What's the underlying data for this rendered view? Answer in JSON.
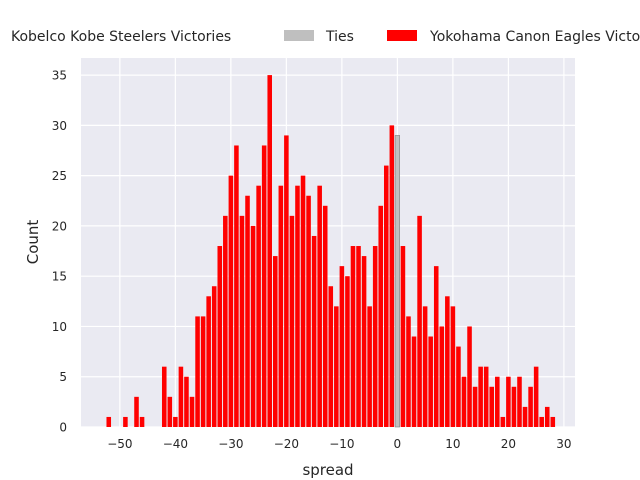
{
  "chart_data": {
    "type": "bar",
    "title": "",
    "xlabel": "spread",
    "ylabel": "Count",
    "xlim": [
      -57,
      32
    ],
    "ylim": [
      0,
      36.7
    ],
    "grid": true,
    "legend_placement": "top",
    "x_ticks": [
      -50,
      -40,
      -30,
      -20,
      -10,
      0,
      10,
      20,
      30
    ],
    "x_tick_labels": [
      "−50",
      "−40",
      "−30",
      "−20",
      "−10",
      "0",
      "10",
      "20",
      "30"
    ],
    "y_ticks": [
      0,
      5,
      10,
      15,
      20,
      25,
      30,
      35
    ],
    "y_tick_labels": [
      "0",
      "5",
      "10",
      "15",
      "20",
      "25",
      "30",
      "35"
    ],
    "series": [
      {
        "name": "Kobelco Kobe Steelers Victories",
        "color": "#ff0000",
        "x": [
          -52,
          -49,
          -47,
          -46,
          -42,
          -41,
          -40,
          -39,
          -38,
          -37,
          -36,
          -35,
          -34,
          -33,
          -32,
          -31,
          -30,
          -29,
          -28,
          -27,
          -26,
          -25,
          -24,
          -23,
          -22,
          -21,
          -20,
          -19,
          -18,
          -17,
          -16,
          -15,
          -14,
          -13,
          -12,
          -11,
          -10,
          -9,
          -8,
          -7,
          -6,
          -5,
          -4,
          -3,
          -2,
          -1
        ],
        "values": [
          1,
          1,
          3,
          1,
          6,
          3,
          1,
          6,
          5,
          3,
          11,
          11,
          13,
          14,
          18,
          21,
          25,
          28,
          21,
          23,
          20,
          24,
          28,
          35,
          17,
          24,
          29,
          21,
          24,
          25,
          23,
          19,
          24,
          22,
          14,
          12,
          16,
          15,
          18,
          18,
          17,
          12,
          18,
          22,
          26,
          30
        ]
      },
      {
        "name": "Ties",
        "color": "#bfbfbf",
        "x": [
          0
        ],
        "values": [
          29
        ]
      },
      {
        "name": "Yokohama Canon Eagles Victories",
        "color": "#ff0000",
        "x": [
          1,
          2,
          3,
          4,
          5,
          6,
          7,
          8,
          9,
          10,
          11,
          12,
          13,
          14,
          15,
          16,
          17,
          18,
          19,
          20,
          21,
          22,
          23,
          24,
          25,
          26,
          27,
          28
        ],
        "values": [
          18,
          11,
          9,
          21,
          12,
          9,
          16,
          10,
          13,
          12,
          8,
          5,
          10,
          4,
          6,
          6,
          4,
          5,
          1,
          5,
          4,
          5,
          2,
          4,
          6,
          1,
          2,
          1
        ]
      }
    ]
  }
}
